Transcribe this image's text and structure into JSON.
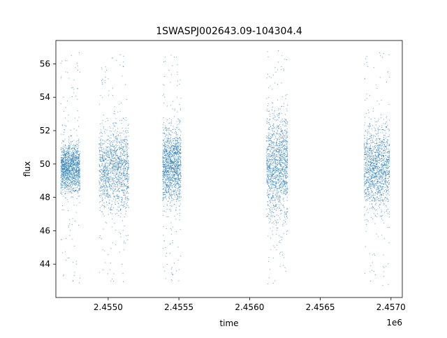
{
  "chart_data": {
    "type": "scatter",
    "title": "1SWASPJ002643.09-104304.4",
    "xlabel": "time",
    "ylabel": "flux",
    "x_offset_label": "1e6",
    "xlim": [
      2454630,
      2457080
    ],
    "ylim": [
      42.0,
      57.4
    ],
    "x_ticks": [
      2455000,
      2455500,
      2456000,
      2456500,
      2457000
    ],
    "x_tick_labels": [
      "2.4550",
      "2.4555",
      "2.4560",
      "2.4565",
      "2.4570"
    ],
    "y_ticks": [
      44,
      46,
      48,
      50,
      52,
      54,
      56
    ],
    "y_tick_labels": [
      "44",
      "46",
      "48",
      "50",
      "52",
      "54",
      "56"
    ],
    "grid": false,
    "legend": "none",
    "marker_color": "#1f77b4",
    "series": [
      {
        "observing_seasons": [
          {
            "x_start": 2454665,
            "x_end": 2454800,
            "core_min": 48.5,
            "core_max": 51.0,
            "tail_min": 42.8,
            "tail_max": 56.7
          },
          {
            "x_start": 2454935,
            "x_end": 2455145,
            "core_min": 47.8,
            "core_max": 51.8,
            "tail_min": 42.9,
            "tail_max": 56.7
          },
          {
            "x_start": 2455385,
            "x_end": 2455515,
            "core_min": 48.0,
            "core_max": 51.8,
            "tail_min": 42.9,
            "tail_max": 56.8
          },
          {
            "x_start": 2456120,
            "x_end": 2456270,
            "core_min": 47.5,
            "core_max": 52.3,
            "tail_min": 42.8,
            "tail_max": 56.8
          },
          {
            "x_start": 2456810,
            "x_end": 2456990,
            "core_min": 47.8,
            "core_max": 51.8,
            "tail_min": 42.7,
            "tail_max": 56.7
          }
        ]
      }
    ]
  }
}
